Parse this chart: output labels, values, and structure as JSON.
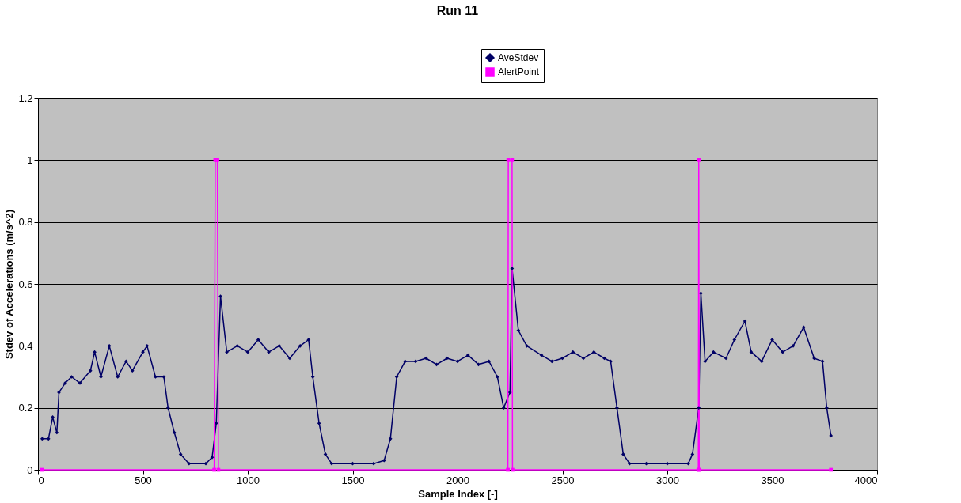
{
  "chart_data": {
    "type": "line",
    "title": "Run 11",
    "xlabel": "Sample Index [-]",
    "ylabel": "Stdev of Accelerations (m/s^2)",
    "xlim": [
      0,
      4000
    ],
    "xticks": [
      0,
      500,
      1000,
      1500,
      2000,
      2500,
      3000,
      3500,
      4000
    ],
    "ylim": [
      0,
      1.2
    ],
    "yticks": [
      0,
      0.2,
      0.4,
      0.6,
      0.8,
      1,
      1.2
    ],
    "grid": "y",
    "legend": "top right",
    "series": [
      {
        "name": "AveStdev",
        "color": "#000066",
        "marker": "diamond",
        "x": [
          20,
          50,
          70,
          90,
          100,
          130,
          160,
          200,
          250,
          270,
          300,
          340,
          380,
          420,
          450,
          500,
          520,
          560,
          600,
          620,
          650,
          680,
          720,
          800,
          830,
          850,
          870,
          900,
          950,
          1000,
          1050,
          1100,
          1150,
          1200,
          1250,
          1290,
          1310,
          1340,
          1370,
          1400,
          1500,
          1600,
          1650,
          1680,
          1710,
          1750,
          1800,
          1850,
          1900,
          1950,
          2000,
          2050,
          2100,
          2150,
          2190,
          2220,
          2250,
          2260,
          2290,
          2330,
          2400,
          2450,
          2500,
          2550,
          2600,
          2650,
          2700,
          2730,
          2760,
          2790,
          2820,
          2900,
          3000,
          3100,
          3120,
          3150,
          3160,
          3180,
          3220,
          3280,
          3320,
          3370,
          3400,
          3450,
          3500,
          3550,
          3600,
          3650,
          3700,
          3740,
          3760,
          3780
        ],
        "values": [
          0.1,
          0.1,
          0.17,
          0.12,
          0.25,
          0.28,
          0.3,
          0.28,
          0.32,
          0.38,
          0.3,
          0.4,
          0.3,
          0.35,
          0.32,
          0.38,
          0.4,
          0.3,
          0.3,
          0.2,
          0.12,
          0.05,
          0.02,
          0.02,
          0.04,
          0.15,
          0.56,
          0.38,
          0.4,
          0.38,
          0.42,
          0.38,
          0.4,
          0.36,
          0.4,
          0.42,
          0.3,
          0.15,
          0.05,
          0.02,
          0.02,
          0.02,
          0.03,
          0.1,
          0.3,
          0.35,
          0.35,
          0.36,
          0.34,
          0.36,
          0.35,
          0.37,
          0.34,
          0.35,
          0.3,
          0.2,
          0.25,
          0.65,
          0.45,
          0.4,
          0.37,
          0.35,
          0.36,
          0.38,
          0.36,
          0.38,
          0.36,
          0.35,
          0.2,
          0.05,
          0.02,
          0.02,
          0.02,
          0.02,
          0.05,
          0.2,
          0.57,
          0.35,
          0.38,
          0.36,
          0.42,
          0.48,
          0.38,
          0.35,
          0.42,
          0.38,
          0.4,
          0.46,
          0.36,
          0.35,
          0.2,
          0.11
        ]
      },
      {
        "name": "AlertPoint",
        "color": "#ff00ff",
        "marker": "square",
        "x": [
          20,
          840,
          845,
          855,
          860,
          2240,
          2242,
          2260,
          2262,
          3148,
          3150,
          3152,
          3780
        ],
        "values": [
          0,
          0,
          1,
          1,
          0,
          0,
          1,
          1,
          0,
          0,
          1,
          0,
          0
        ]
      }
    ]
  }
}
